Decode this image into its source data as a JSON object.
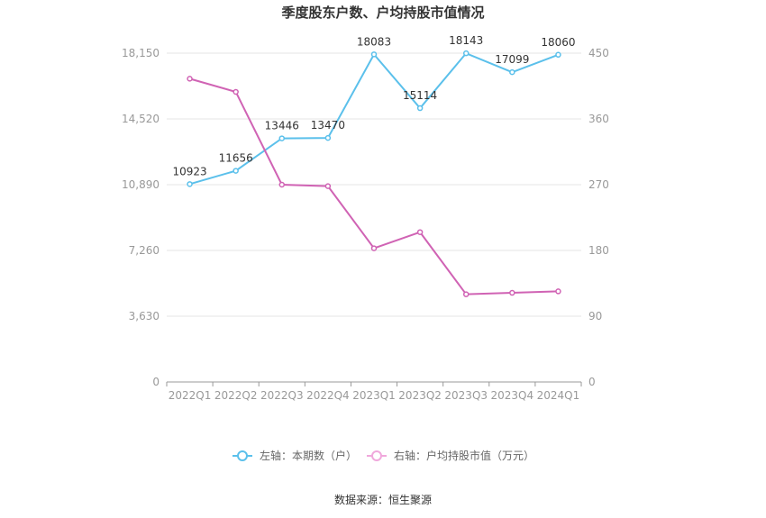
{
  "chart_data": {
    "type": "line",
    "title": "季度股东户数、户均持股市值情况",
    "categories": [
      "2022Q1",
      "2022Q2",
      "2022Q3",
      "2022Q4",
      "2023Q1",
      "2023Q2",
      "2023Q3",
      "2023Q4",
      "2024Q1"
    ],
    "series": [
      {
        "name": "左轴：本期数（户）",
        "axis": "left",
        "color": "#5bc0eb",
        "values": [
          10923,
          11656,
          13446,
          13470,
          18083,
          15114,
          18143,
          17099,
          18060
        ],
        "labels": [
          "10923",
          "11656",
          "13446",
          "13470",
          "18083",
          "15114",
          "18143",
          "17099",
          "18060"
        ]
      },
      {
        "name": "右轴：户均持股市值（万元）",
        "axis": "right",
        "color": "#d063b4",
        "values": [
          415,
          397,
          270,
          268,
          183,
          205,
          120,
          122,
          124
        ]
      }
    ],
    "yleft": {
      "min": 0,
      "max": 18150,
      "ticks": [
        0,
        3630,
        7260,
        10890,
        14520,
        18150
      ],
      "tick_labels": [
        "0",
        "3,630",
        "7,260",
        "10,890",
        "14,520",
        "18,150"
      ]
    },
    "yright": {
      "min": 0,
      "max": 450,
      "ticks": [
        0,
        90,
        180,
        270,
        360,
        450
      ],
      "tick_labels": [
        "0",
        "90",
        "180",
        "270",
        "360",
        "450"
      ]
    },
    "grid": true,
    "legend_position": "bottom",
    "source": "数据来源：恒生聚源"
  }
}
